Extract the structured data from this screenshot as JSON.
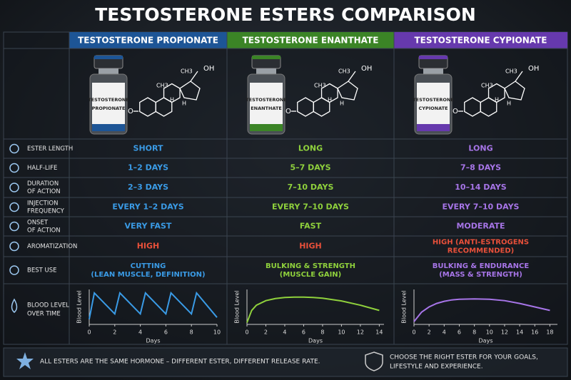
{
  "title": "TESTOSTERONE ESTERS COMPARISON",
  "molecule": {
    "oh": "OH",
    "ch3": "CH3",
    "h": "H",
    "o": "O"
  },
  "columns": [
    {
      "name": "TESTOSTERONE PROPIONATE",
      "vial_label": [
        "TESTOSTERONE",
        "PROPIONATE"
      ],
      "header_color": "#1d5596",
      "color": "#3a9be6"
    },
    {
      "name": "TESTOSTERONE ENANTHATE",
      "vial_label": [
        "TESTOSTERONE",
        "ENANTHATE"
      ],
      "header_color": "#3b8426",
      "color": "#8fd13c"
    },
    {
      "name": "TESTOSTERONE CYPIONATE",
      "vial_label": [
        "TESTOSTERONE",
        "CYPIONATE"
      ],
      "header_color": "#6639ad",
      "color": "#a775e8"
    }
  ],
  "rows": [
    {
      "label": [
        "ESTER LENGTH"
      ],
      "cells": [
        [
          "SHORT"
        ],
        [
          "LONG"
        ],
        [
          "LONG"
        ]
      ]
    },
    {
      "label": [
        "HALF-LIFE"
      ],
      "cells": [
        [
          "1–2 DAYS"
        ],
        [
          "5–7 DAYS"
        ],
        [
          "7–8 DAYS"
        ]
      ]
    },
    {
      "label": [
        "DURATION",
        "OF ACTION"
      ],
      "cells": [
        [
          "2–3 DAYS"
        ],
        [
          "7–10 DAYS"
        ],
        [
          "10–14 DAYS"
        ]
      ]
    },
    {
      "label": [
        "INJECTION",
        "FREQUENCY"
      ],
      "cells": [
        [
          "EVERY 1–2 DAYS"
        ],
        [
          "EVERY 7–10 DAYS"
        ],
        [
          "EVERY 7–10 DAYS"
        ]
      ]
    },
    {
      "label": [
        "ONSET",
        "OF ACTION"
      ],
      "cells": [
        [
          "VERY FAST"
        ],
        [
          "FAST"
        ],
        [
          "MODERATE"
        ]
      ]
    },
    {
      "label": [
        "AROMATIZATION"
      ],
      "color": "#e9503a",
      "cells": [
        [
          "HIGH"
        ],
        [
          "HIGH"
        ],
        [
          "HIGH (ANTI-ESTROGENS",
          "RECOMMENDED)"
        ]
      ]
    },
    {
      "label": [
        "BEST USE"
      ],
      "cells": [
        [
          "CUTTING",
          "(LEAN MUSCLE, DEFINITION)"
        ],
        [
          "BULKING & STRENGTH",
          "(MUSCLE GAIN)"
        ],
        [
          "BULKING & ENDURANCE",
          "(MASS & STRENGTH)"
        ]
      ]
    }
  ],
  "chart_label": [
    "BLOOD LEVEL",
    "OVER TIME"
  ],
  "charts": [
    {
      "type": "line",
      "y_label": "Blood Level",
      "x_label": "Days",
      "xlim": [
        0,
        10
      ],
      "xticks": [
        0,
        2,
        4,
        6,
        8,
        10
      ],
      "ylim": [
        0,
        100
      ],
      "x": [
        0,
        0.4,
        2,
        2.4,
        4,
        4.4,
        6,
        6.4,
        8,
        8.4,
        10
      ],
      "values": [
        15,
        90,
        30,
        90,
        30,
        90,
        30,
        90,
        30,
        90,
        20
      ]
    },
    {
      "type": "line",
      "y_label": "Blood Level",
      "x_label": "Days",
      "xlim": [
        0,
        14.5
      ],
      "xticks": [
        0,
        2,
        4,
        6,
        8,
        10,
        12,
        14
      ],
      "ylim": [
        0,
        100
      ],
      "x": [
        0,
        0.5,
        1,
        2,
        3,
        4,
        5,
        6,
        7,
        8,
        10,
        12,
        14
      ],
      "values": [
        5,
        40,
        55,
        68,
        74,
        77,
        78,
        78,
        77,
        75,
        67,
        55,
        40
      ]
    },
    {
      "type": "line",
      "y_label": "Blood Level",
      "x_label": "Days",
      "xlim": [
        0,
        19
      ],
      "xticks": [
        0,
        2,
        4,
        6,
        8,
        10,
        12,
        14,
        16,
        18
      ],
      "ylim": [
        0,
        100
      ],
      "x": [
        0,
        1,
        2,
        3,
        4,
        5,
        6,
        8,
        10,
        12,
        14,
        16,
        18
      ],
      "values": [
        8,
        35,
        50,
        60,
        66,
        70,
        72,
        73,
        72,
        68,
        60,
        50,
        40
      ]
    }
  ],
  "footer": [
    [
      "ALL ESTERS ARE THE SAME HORMONE – DIFFERENT ESTER, DIFFERENT RELEASE RATE."
    ],
    [
      "CHOOSE THE RIGHT ESTER FOR YOUR GOALS,",
      "LIFESTYLE AND EXPERIENCE."
    ]
  ]
}
